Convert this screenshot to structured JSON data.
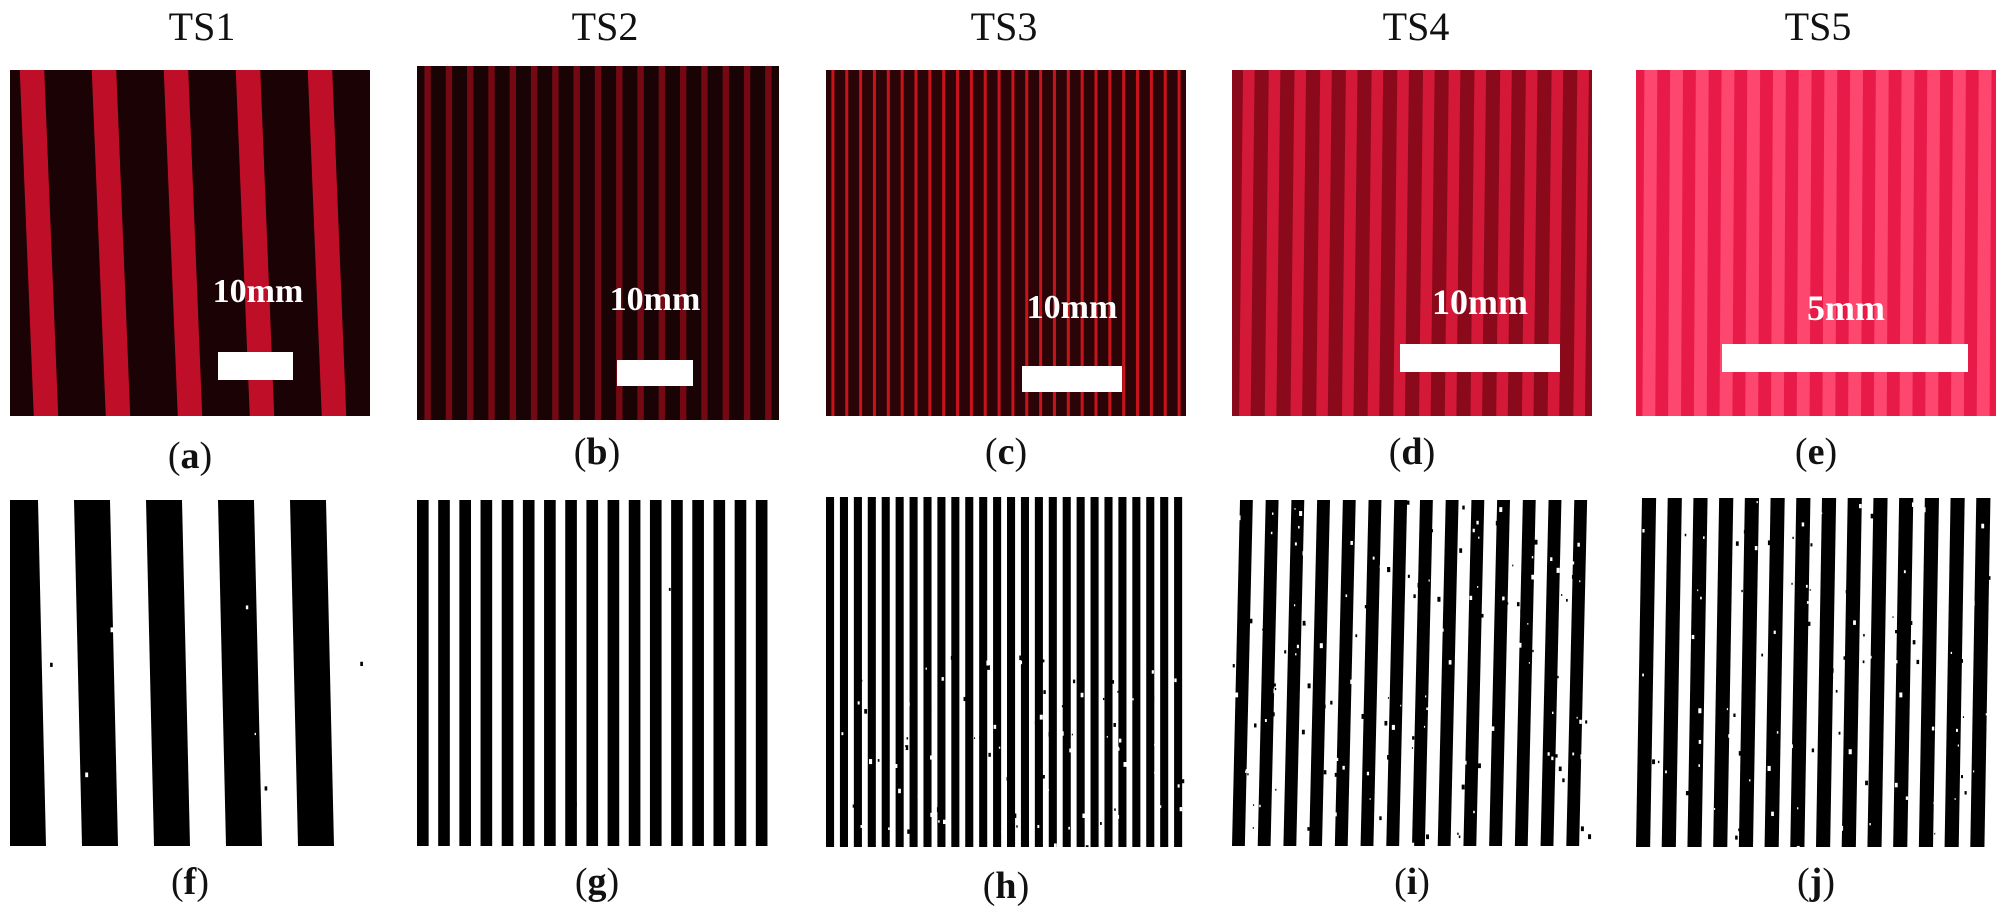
{
  "figure": {
    "columns": [
      {
        "title": "TS1",
        "top_panel": {
          "scale_bar_label": "10mm",
          "stripe_count": 5,
          "caption_letter": "a"
        },
        "bottom_panel": {
          "stripe_count": 5,
          "caption_letter": "f"
        }
      },
      {
        "title": "TS2",
        "top_panel": {
          "scale_bar_label": "10mm",
          "stripe_count": 17,
          "caption_letter": "b"
        },
        "bottom_panel": {
          "stripe_count": 17,
          "caption_letter": "g"
        }
      },
      {
        "title": "TS3",
        "top_panel": {
          "scale_bar_label": "10mm",
          "stripe_count": 26,
          "caption_letter": "c"
        },
        "bottom_panel": {
          "stripe_count": 26,
          "caption_letter": "h"
        }
      },
      {
        "title": "TS4",
        "top_panel": {
          "scale_bar_label": "10mm",
          "stripe_count": 14,
          "caption_letter": "d"
        },
        "bottom_panel": {
          "stripe_count": 14,
          "caption_letter": "i"
        }
      },
      {
        "title": "TS5",
        "top_panel": {
          "scale_bar_label": "5mm",
          "stripe_count": 14,
          "caption_letter": "e"
        },
        "bottom_panel": {
          "stripe_count": 14,
          "caption_letter": "j"
        }
      }
    ],
    "colors": {
      "ts1_dark": "#1a0205",
      "ts1_bright": "#c8102a",
      "ts2_dark": "#1a0305",
      "ts2_bright": "#7a0a14",
      "ts3_dark": "#2a0406",
      "ts3_bright": "#d0141e",
      "ts4_dark": "#8a0a1c",
      "ts4_bright": "#d81a3a",
      "ts5_dark": "#e81a48",
      "ts5_bright": "#ff4a72",
      "binary_black": "#000000",
      "binary_white": "#ffffff",
      "scale_bar": "#ffffff"
    }
  }
}
